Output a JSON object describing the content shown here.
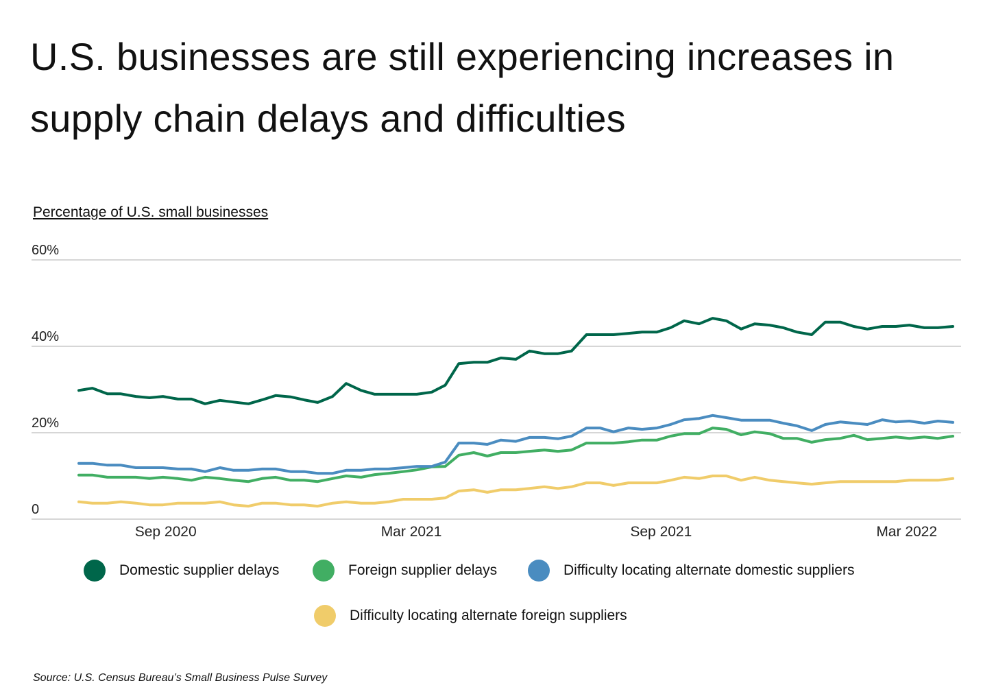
{
  "title": "U.S. businesses are still experiencing increases in supply chain delays and difficulties",
  "source": "Source:  U.S. Census Bureau’s Small Business Pulse Survey",
  "chart_data": {
    "type": "line",
    "ylabel": "Percentage of U.S. small businesses",
    "ylim": [
      0,
      60
    ],
    "yticks": [
      0,
      20,
      40,
      60
    ],
    "ytick_labels": [
      "0",
      "20%",
      "40%",
      "60%"
    ],
    "grid": true,
    "xticks": [
      "2020-09-01",
      "2021-03-01",
      "2021-09-01",
      "2022-03-01"
    ],
    "xtick_labels": [
      "Sep 2020",
      "Mar 2021",
      "Sep 2021",
      "Mar 2022"
    ],
    "legend_position": "bottom",
    "x": [
      "2020-06-29",
      "2020-07-09",
      "2020-07-20",
      "2020-07-30",
      "2020-08-10",
      "2020-08-20",
      "2020-08-30",
      "2020-09-10",
      "2020-09-20",
      "2020-09-30",
      "2020-10-11",
      "2020-10-21",
      "2020-11-01",
      "2020-11-11",
      "2020-11-21",
      "2020-12-02",
      "2020-12-12",
      "2020-12-22",
      "2021-01-02",
      "2021-01-12",
      "2021-01-23",
      "2021-02-02",
      "2021-02-12",
      "2021-02-23",
      "2021-03-05",
      "2021-03-16",
      "2021-03-26",
      "2021-04-05",
      "2021-04-16",
      "2021-04-26",
      "2021-05-06",
      "2021-05-17",
      "2021-05-27",
      "2021-06-07",
      "2021-06-17",
      "2021-06-27",
      "2021-07-08",
      "2021-07-18",
      "2021-07-28",
      "2021-08-08",
      "2021-08-18",
      "2021-08-29",
      "2021-09-08",
      "2021-09-18",
      "2021-09-29",
      "2021-10-09",
      "2021-10-19",
      "2021-10-30",
      "2021-11-09",
      "2021-11-20",
      "2021-11-30",
      "2021-12-10",
      "2021-12-21",
      "2021-12-31",
      "2022-01-11",
      "2022-01-21",
      "2022-01-31",
      "2022-02-11",
      "2022-02-21",
      "2022-03-03",
      "2022-03-14",
      "2022-03-24",
      "2022-04-04"
    ],
    "series": [
      {
        "name": "Domestic supplier delays",
        "color": "#00664a",
        "values": [
          29.8,
          30.3,
          29.0,
          29.0,
          28.4,
          28.1,
          28.4,
          27.8,
          27.8,
          26.7,
          27.5,
          27.1,
          26.7,
          27.6,
          28.6,
          28.3,
          27.6,
          27.0,
          28.4,
          31.4,
          29.8,
          28.9,
          28.9,
          28.9,
          28.9,
          29.4,
          31.0,
          36.0,
          36.3,
          36.3,
          37.3,
          37.0,
          38.9,
          38.3,
          38.3,
          38.9,
          42.7,
          42.7,
          42.7,
          43.0,
          43.3,
          43.3,
          44.3,
          45.9,
          45.2,
          46.5,
          45.9,
          44.0,
          45.2,
          44.9,
          44.3,
          43.3,
          42.7,
          45.6,
          45.6,
          44.6,
          44.0,
          44.6,
          44.6,
          44.9,
          44.3,
          44.3,
          44.6
        ]
      },
      {
        "name": "Foreign supplier delays",
        "color": "#41ae63",
        "values": [
          10.2,
          10.2,
          9.7,
          9.7,
          9.7,
          9.4,
          9.7,
          9.4,
          9.0,
          9.7,
          9.4,
          9.0,
          8.7,
          9.4,
          9.7,
          9.0,
          9.0,
          8.7,
          9.4,
          10.0,
          9.7,
          10.3,
          10.6,
          11.0,
          11.4,
          12.1,
          12.2,
          14.8,
          15.4,
          14.6,
          15.4,
          15.4,
          15.7,
          16.0,
          15.7,
          16.0,
          17.6,
          17.6,
          17.6,
          17.9,
          18.3,
          18.3,
          19.2,
          19.8,
          19.8,
          21.1,
          20.8,
          19.5,
          20.2,
          19.8,
          18.7,
          18.7,
          17.8,
          18.4,
          18.7,
          19.4,
          18.4,
          18.7,
          19.0,
          18.7,
          19.0,
          18.7,
          19.2
        ]
      },
      {
        "name": "Difficulty locating alternate domestic suppliers",
        "color": "#4a8cc0",
        "values": [
          12.9,
          12.9,
          12.5,
          12.5,
          11.9,
          11.9,
          11.9,
          11.6,
          11.6,
          11.0,
          11.9,
          11.3,
          11.3,
          11.6,
          11.6,
          11.0,
          11.0,
          10.6,
          10.6,
          11.3,
          11.3,
          11.6,
          11.6,
          11.9,
          12.2,
          12.2,
          13.2,
          17.6,
          17.6,
          17.3,
          18.3,
          18.0,
          18.9,
          18.9,
          18.6,
          19.2,
          21.1,
          21.1,
          20.2,
          21.1,
          20.8,
          21.1,
          21.9,
          23.0,
          23.3,
          24.0,
          23.5,
          22.9,
          22.9,
          22.9,
          22.2,
          21.6,
          20.5,
          21.9,
          22.5,
          22.2,
          21.9,
          23.0,
          22.5,
          22.7,
          22.2,
          22.7,
          22.4
        ]
      },
      {
        "name": "Difficulty locating alternate foreign suppliers",
        "color": "#f0cc6a",
        "values": [
          4.0,
          3.7,
          3.7,
          4.0,
          3.7,
          3.3,
          3.3,
          3.7,
          3.7,
          3.7,
          4.0,
          3.3,
          3.0,
          3.7,
          3.7,
          3.3,
          3.3,
          3.0,
          3.7,
          4.0,
          3.7,
          3.7,
          4.0,
          4.6,
          4.6,
          4.6,
          4.9,
          6.5,
          6.8,
          6.2,
          6.8,
          6.8,
          7.1,
          7.5,
          7.1,
          7.5,
          8.4,
          8.4,
          7.8,
          8.4,
          8.4,
          8.4,
          9.0,
          9.7,
          9.4,
          10.0,
          10.0,
          9.0,
          9.7,
          9.0,
          8.7,
          8.4,
          8.1,
          8.4,
          8.7,
          8.7,
          8.7,
          8.7,
          8.7,
          9.0,
          9.0,
          9.0,
          9.4
        ]
      }
    ]
  }
}
